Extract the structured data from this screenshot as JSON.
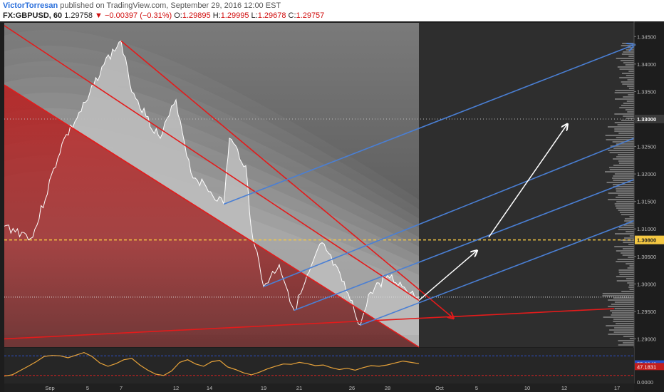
{
  "header": {
    "author": "VictorTorresan",
    "published": "published on TradingView.com, September 29, 2016 12:00 EST",
    "symbol": "FX:GBPUSD, 60",
    "last": "1.29758",
    "arrow": "▼",
    "change": "−0.00397 (−0.31%)",
    "o_label": "O:",
    "o_value": "1.29895",
    "h_label": "H:",
    "h_value": "1.29995",
    "l_label": "L:",
    "l_value": "1.29678",
    "c_label": "C:",
    "c_value": "1.29757"
  },
  "chart_data": [
    {
      "type": "area",
      "symbol": "FX:GBPUSD",
      "interval": "60",
      "x_ticks": [
        "Sep",
        "5",
        "7",
        "12",
        "14",
        "19",
        "21",
        "26",
        "28",
        "Oct",
        "5",
        "10",
        "12",
        "17"
      ],
      "y_ticks": [
        "1.34500",
        "1.34000",
        "1.33500",
        "1.33000",
        "1.32500",
        "1.32000",
        "1.31500",
        "1.31000",
        "1.30500",
        "1.30000",
        "1.29500",
        "1.29000"
      ],
      "ylim": [
        1.2885,
        1.3475
      ],
      "price_labels": [
        {
          "value": 1.33,
          "text": "1.33000"
        },
        {
          "value": 1.308,
          "text": "1.30800"
        }
      ],
      "price_series": [
        [
          "Aug 31",
          1.3105
        ],
        [
          "Sep 1",
          1.3085
        ],
        [
          "Sep 2",
          1.3255
        ],
        [
          "Sep 5",
          1.3335
        ],
        [
          "Sep 6",
          1.3395
        ],
        [
          "Sep 7",
          1.3442
        ],
        [
          "Sep 7",
          1.3365
        ],
        [
          "Sep 8",
          1.3305
        ],
        [
          "Sep 9",
          1.3265
        ],
        [
          "Sep 12",
          1.3335
        ],
        [
          "Sep 13",
          1.3202
        ],
        [
          "Sep 14",
          1.3145
        ],
        [
          "Sep 15",
          1.3265
        ],
        [
          "Sep 16",
          1.3215
        ],
        [
          "Sep 19",
          1.3108
        ],
        [
          "Sep 19",
          1.2995
        ],
        [
          "Sep 20",
          1.3035
        ],
        [
          "Sep 21",
          1.2952
        ],
        [
          "Sep 22",
          1.3075
        ],
        [
          "Sep 23",
          1.3005
        ],
        [
          "Sep 26",
          1.2925
        ],
        [
          "Sep 27",
          1.2985
        ],
        [
          "Sep 28",
          1.3015
        ],
        [
          "Sep 29",
          1.2976
        ]
      ],
      "lines": [
        {
          "name": "red-channel-top",
          "color": "#e31b1b",
          "from": [
            "Aug 28",
            1.347
          ],
          "to": [
            "Sep 29",
            1.297
          ]
        },
        {
          "name": "red-channel-bottom",
          "color": "#e31b1b",
          "from": [
            "Sep 7",
            1.3442
          ],
          "to": [
            "Oct 1",
            1.2938
          ],
          "arrow": true
        },
        {
          "name": "red-long-diagonal",
          "color": "#e31b1b",
          "from": [
            "Aug 28",
            1.3362
          ],
          "to": [
            "Sep 29",
            1.2885
          ]
        },
        {
          "name": "red-support",
          "color": "#e31b1b",
          "from": [
            "Aug 28",
            1.29
          ],
          "to": [
            "Oct 15",
            1.2955
          ]
        },
        {
          "name": "blue-fork-top",
          "color": "#4a7fd4",
          "from": [
            "Sep 14",
            1.3145
          ],
          "to": [
            "Oct 17",
            1.3435
          ],
          "arrow": true
        },
        {
          "name": "blue-fork-line-2",
          "color": "#4a7fd4",
          "from": [
            "Sep 19",
            1.2995
          ],
          "to": [
            "Oct 17",
            1.3265
          ]
        },
        {
          "name": "blue-fork-line-3",
          "color": "#4a7fd4",
          "from": [
            "Sep 21",
            1.2952
          ],
          "to": [
            "Oct 17",
            1.319
          ]
        },
        {
          "name": "blue-fork-bottom",
          "color": "#4a7fd4",
          "from": [
            "Sep 26",
            1.2925
          ],
          "to": [
            "Oct 17",
            1.3115
          ]
        },
        {
          "name": "white-arrow-1",
          "color": "#ffffff",
          "from": [
            "Sep 29",
            1.297
          ],
          "to": [
            "Oct 5",
            1.306
          ],
          "arrow": true
        },
        {
          "name": "white-arrow-2",
          "color": "#ffffff",
          "from": [
            "Oct 6",
            1.3085
          ],
          "to": [
            "Oct 10",
            1.329
          ],
          "arrow": true
        }
      ]
    },
    {
      "type": "line",
      "title": "",
      "y_ticks": [
        "55.2942",
        "47.1831",
        "0.0000"
      ],
      "ylim": [
        0,
        100
      ],
      "value_labels": [
        {
          "value": 55.2942,
          "text": "55.2942"
        },
        {
          "value": 47.1831,
          "text": "47.1831"
        }
      ],
      "series": [
        {
          "values": [
            18,
            22,
            35,
            48,
            62,
            78,
            81,
            80,
            74,
            82,
            90,
            78,
            58,
            48,
            56,
            68,
            72,
            52,
            36,
            24,
            20,
            34,
            60,
            68,
            55,
            48,
            62,
            66,
            46,
            38,
            28,
            22,
            30,
            40,
            48,
            55,
            54,
            60,
            56,
            50,
            52,
            44,
            38,
            42,
            36,
            44,
            50,
            48,
            52,
            58,
            64,
            60,
            56
          ]
        }
      ],
      "levels": [
        {
          "value": 80,
          "color": "#2a4fc7"
        },
        {
          "value": 20,
          "color": "#d12020"
        }
      ]
    }
  ]
}
